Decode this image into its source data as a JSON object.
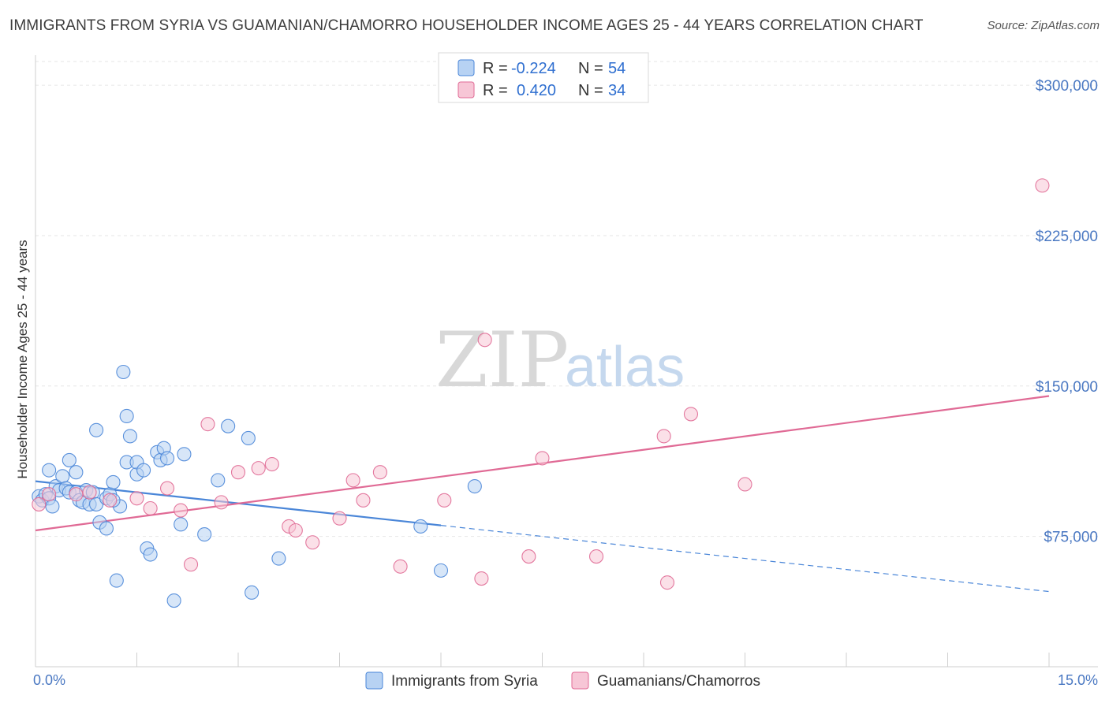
{
  "title": "IMMIGRANTS FROM SYRIA VS GUAMANIAN/CHAMORRO HOUSEHOLDER INCOME AGES 25 - 44 YEARS CORRELATION CHART",
  "source": "Source: ZipAtlas.com",
  "watermark": {
    "zip": "ZIP",
    "atlas": "atlas"
  },
  "colors": {
    "blue": "#4a86d8",
    "blue_fill": "#b7d2f3",
    "pink": "#e06a95",
    "pink_fill": "#f7c6d6",
    "axis_text": "#4a78c2"
  },
  "legend": {
    "rows": [
      {
        "r_label": "R =",
        "r_value": "-0.224",
        "n_label": "N =",
        "n_value": "54"
      },
      {
        "r_label": "R =",
        "r_value": "0.420",
        "n_label": "N =",
        "n_value": "34"
      }
    ]
  },
  "chart_data": {
    "type": "scatter",
    "xlabel": "",
    "ylabel": "Householder Income Ages 25 - 44 years",
    "xlim": [
      0,
      15
    ],
    "ylim": [
      10000,
      315000
    ],
    "x_tick_labels": {
      "left": "0.0%",
      "right": "15.0%"
    },
    "y_ticks": [
      {
        "value": 300000,
        "label": "$300,000"
      },
      {
        "value": 225000,
        "label": "$225,000"
      },
      {
        "value": 150000,
        "label": "$150,000"
      },
      {
        "value": 75000,
        "label": "$75,000"
      }
    ],
    "grid": true,
    "series": [
      {
        "name": "Immigrants from Syria",
        "color": "#4a86d8",
        "trend": {
          "x0": 0.0,
          "y0": 102500,
          "x1": 6.0,
          "y1": 80500,
          "dash_x1": 15.0,
          "dash_y1": 47500
        },
        "points": [
          [
            0.05,
            95000
          ],
          [
            0.1,
            93000
          ],
          [
            0.15,
            96000
          ],
          [
            0.2,
            94000
          ],
          [
            0.2,
            108000
          ],
          [
            0.25,
            90000
          ],
          [
            0.3,
            100000
          ],
          [
            0.35,
            98000
          ],
          [
            0.4,
            105000
          ],
          [
            0.45,
            99000
          ],
          [
            0.5,
            97000
          ],
          [
            0.5,
            113000
          ],
          [
            0.6,
            107000
          ],
          [
            0.6,
            97000
          ],
          [
            0.65,
            93000
          ],
          [
            0.7,
            92000
          ],
          [
            0.75,
            98000
          ],
          [
            0.8,
            91000
          ],
          [
            0.85,
            97000
          ],
          [
            0.9,
            91000
          ],
          [
            0.9,
            128000
          ],
          [
            0.95,
            82000
          ],
          [
            1.05,
            94000
          ],
          [
            1.05,
            79000
          ],
          [
            1.1,
            96000
          ],
          [
            1.15,
            102000
          ],
          [
            1.2,
            53000
          ],
          [
            1.25,
            90000
          ],
          [
            1.3,
            157000
          ],
          [
            1.35,
            135000
          ],
          [
            1.35,
            112000
          ],
          [
            1.4,
            125000
          ],
          [
            1.5,
            106000
          ],
          [
            1.5,
            112000
          ],
          [
            1.6,
            108000
          ],
          [
            1.65,
            69000
          ],
          [
            1.7,
            66000
          ],
          [
            1.8,
            117000
          ],
          [
            1.85,
            113000
          ],
          [
            1.9,
            119000
          ],
          [
            1.95,
            114000
          ],
          [
            2.05,
            43000
          ],
          [
            2.15,
            81000
          ],
          [
            2.2,
            116000
          ],
          [
            2.5,
            76000
          ],
          [
            2.7,
            103000
          ],
          [
            2.85,
            130000
          ],
          [
            3.15,
            124000
          ],
          [
            3.2,
            47000
          ],
          [
            3.6,
            64000
          ],
          [
            5.7,
            80000
          ],
          [
            6.0,
            58000
          ],
          [
            6.5,
            100000
          ],
          [
            1.15,
            93000
          ]
        ]
      },
      {
        "name": "Guamanians/Chamorros",
        "color": "#e06a95",
        "trend": {
          "x0": 0.0,
          "y0": 78000,
          "x1": 15.0,
          "y1": 145000
        },
        "points": [
          [
            0.05,
            91000
          ],
          [
            0.2,
            96000
          ],
          [
            0.6,
            96000
          ],
          [
            0.8,
            97000
          ],
          [
            1.1,
            93000
          ],
          [
            1.5,
            94000
          ],
          [
            1.7,
            89000
          ],
          [
            1.95,
            99000
          ],
          [
            2.15,
            88000
          ],
          [
            2.3,
            61000
          ],
          [
            2.55,
            131000
          ],
          [
            2.75,
            92000
          ],
          [
            3.0,
            107000
          ],
          [
            3.3,
            109000
          ],
          [
            3.5,
            111000
          ],
          [
            3.75,
            80000
          ],
          [
            3.85,
            78000
          ],
          [
            4.1,
            72000
          ],
          [
            4.5,
            84000
          ],
          [
            4.7,
            103000
          ],
          [
            4.85,
            93000
          ],
          [
            5.1,
            107000
          ],
          [
            5.4,
            60000
          ],
          [
            6.05,
            93000
          ],
          [
            6.6,
            54000
          ],
          [
            6.65,
            173000
          ],
          [
            7.3,
            65000
          ],
          [
            7.5,
            114000
          ],
          [
            8.3,
            65000
          ],
          [
            9.3,
            125000
          ],
          [
            9.35,
            52000
          ],
          [
            9.7,
            136000
          ],
          [
            10.5,
            101000
          ],
          [
            14.9,
            250000
          ]
        ]
      }
    ]
  }
}
